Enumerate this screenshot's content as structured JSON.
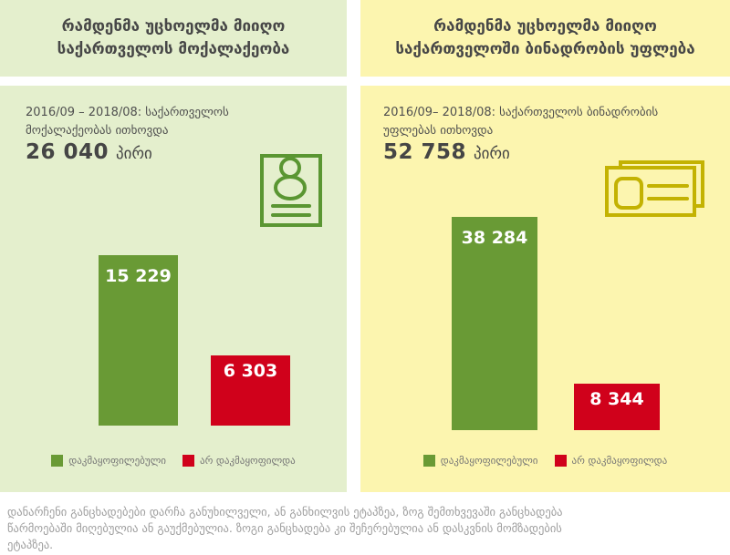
{
  "left_panel": {
    "title": {
      "line1": "რამდენმა უცხოელმა მიიღო",
      "line2": "საქართველოს მოქალაქეობა"
    },
    "period": {
      "line1": "2016/09 – 2018/08: საქართველოს",
      "line2": "მოქალაქეობას ითხოვდა"
    },
    "total": {
      "number": "26 040",
      "unit": "პირი"
    },
    "icon": "person-id-document-icon",
    "chart_data": {
      "type": "bar",
      "categories": [
        "დაკმაყოფილებული",
        "არ დაკმაყოფილდა"
      ],
      "slugs": [
        "approved",
        "denied"
      ],
      "values": [
        15229,
        6303
      ],
      "value_labels": [
        "15 229",
        "6 303"
      ],
      "colors": [
        "#699a35",
        "#d0011b"
      ],
      "axes": false,
      "grid": false,
      "legend_position": "bottom"
    }
  },
  "right_panel": {
    "title": {
      "line1": "რამდენმა უცხოელმა მიიღო",
      "line2": "საქართველოში ბინადრობის უფლება"
    },
    "period": {
      "line1": "2016/09– 2018/08: საქართველოს ბინადრობის",
      "line2": "უფლებას ითხოვდა"
    },
    "total": {
      "number": "52 758",
      "unit": "პირი"
    },
    "icon": "id-cards-icon",
    "chart_data": {
      "type": "bar",
      "categories": [
        "დაკმაყოფილებული",
        "არ დაკმაყოფილდა"
      ],
      "slugs": [
        "approved",
        "denied"
      ],
      "values": [
        38284,
        8344
      ],
      "value_labels": [
        "38 284",
        "8 344"
      ],
      "colors": [
        "#699a35",
        "#d0011b"
      ],
      "axes": false,
      "grid": false,
      "legend_position": "bottom"
    }
  },
  "footnote": {
    "lines": [
      "დანარჩენი განცხადებები დარჩა განუხილველი, ან განხილვის ეტაპზეა, ზოგ შემთხვევაში განცხადება",
      "წარმოებაში მიღებულია ან გაუქმებულია. ზოგი განცხადება კი შეჩერებულია ან დასკვნის მომზადების",
      "ეტაპზეა."
    ]
  },
  "colors": {
    "left_bg": "#e4efcd",
    "right_bg": "#fcf5af",
    "bar_green": "#699a35",
    "bar_red": "#d0011b",
    "icon_green": "#5a9632",
    "icon_gold": "#c3b202",
    "text_dark": "#474747",
    "footnote_gray": "#9e9e9e"
  }
}
